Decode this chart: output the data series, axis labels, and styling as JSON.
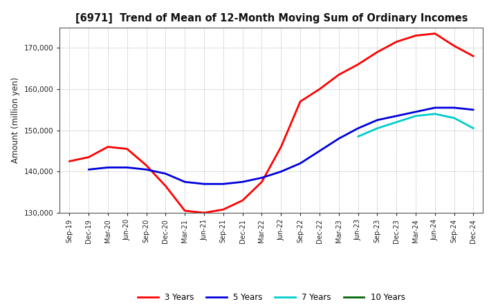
{
  "title": "[6971]  Trend of Mean of 12-Month Moving Sum of Ordinary Incomes",
  "ylabel": "Amount (million yen)",
  "ylim": [
    130000,
    175000
  ],
  "yticks": [
    130000,
    140000,
    150000,
    160000,
    170000
  ],
  "x_labels": [
    "Sep-19",
    "Dec-19",
    "Mar-20",
    "Jun-20",
    "Sep-20",
    "Dec-20",
    "Mar-21",
    "Jun-21",
    "Sep-21",
    "Dec-21",
    "Mar-22",
    "Jun-22",
    "Sep-22",
    "Dec-22",
    "Mar-23",
    "Jun-23",
    "Sep-23",
    "Dec-23",
    "Mar-24",
    "Jun-24",
    "Sep-24",
    "Dec-24"
  ],
  "series_3y": [
    142500,
    143500,
    146000,
    145500,
    141500,
    136500,
    130500,
    130000,
    130800,
    133000,
    137500,
    146000,
    157000,
    160000,
    163500,
    166000,
    169000,
    171500,
    173000,
    173500,
    170500,
    168000
  ],
  "series_5y": [
    null,
    140500,
    141000,
    141000,
    140500,
    139500,
    137500,
    137000,
    137000,
    137500,
    138500,
    140000,
    142000,
    145000,
    148000,
    150500,
    152500,
    153500,
    154500,
    155500,
    155500,
    155000
  ],
  "series_7y": [
    null,
    null,
    null,
    null,
    null,
    null,
    null,
    null,
    null,
    null,
    null,
    null,
    null,
    null,
    null,
    148500,
    150500,
    152000,
    153500,
    154000,
    153000,
    150500
  ],
  "series_10y": [
    null,
    null,
    null,
    null,
    null,
    null,
    null,
    null,
    null,
    null,
    null,
    null,
    null,
    null,
    null,
    null,
    null,
    null,
    null,
    null,
    null,
    null
  ],
  "color_3y": "#ff0000",
  "color_5y": "#0000dd",
  "color_7y": "#00cccc",
  "color_10y": "#006600",
  "legend_labels": [
    "3 Years",
    "5 Years",
    "7 Years",
    "10 Years"
  ],
  "background_color": "#ffffff",
  "grid_color": "#999999"
}
